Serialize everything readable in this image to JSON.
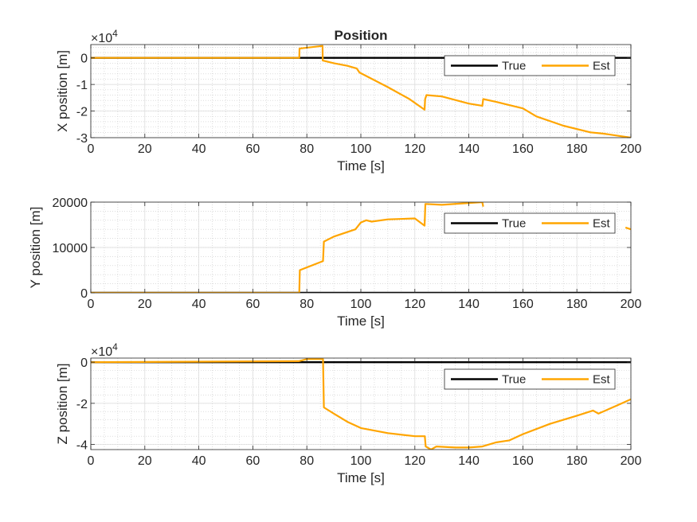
{
  "figure": {
    "title": "Position"
  },
  "legend_colors": {
    "True": "#000000",
    "Est": "#FFA500"
  },
  "chart_data": [
    {
      "type": "line",
      "title": "Position",
      "xlabel": "Time [s]",
      "ylabel": "X position [m]",
      "xlim": [
        0,
        200
      ],
      "ylim": [
        -3,
        0.5
      ],
      "y_multiplier": "×10",
      "y_multiplier_exp": "4",
      "xticks": [
        "0",
        "20",
        "40",
        "60",
        "80",
        "100",
        "120",
        "140",
        "160",
        "180",
        "200"
      ],
      "yticks": [
        {
          "value": 0,
          "label": "0"
        },
        {
          "value": -1,
          "label": "-1"
        },
        {
          "value": -2,
          "label": "-2"
        },
        {
          "value": -3,
          "label": "-3"
        }
      ],
      "grid": true,
      "legend": "top-right",
      "series": [
        {
          "name": "True",
          "color": "#000000",
          "points": [
            [
              0,
              0
            ],
            [
              200,
              0
            ]
          ]
        },
        {
          "name": "Est",
          "color": "#FFA500",
          "points": [
            [
              0,
              0
            ],
            [
              77.2,
              0
            ],
            [
              77.3,
              0.35
            ],
            [
              85.8,
              0.45
            ],
            [
              85.9,
              -0.1
            ],
            [
              90,
              -0.2
            ],
            [
              95,
              -0.3
            ],
            [
              98.5,
              -0.4
            ],
            [
              99.5,
              -0.55
            ],
            [
              110,
              -1.1
            ],
            [
              118,
              -1.55
            ],
            [
              123.6,
              -1.95
            ],
            [
              123.8,
              -1.55
            ],
            [
              124.3,
              -1.4
            ],
            [
              130,
              -1.45
            ],
            [
              140,
              -1.72
            ],
            [
              145,
              -1.8
            ],
            [
              145.3,
              -1.55
            ],
            [
              150,
              -1.65
            ],
            [
              160,
              -1.9
            ],
            [
              165,
              -2.2
            ],
            [
              175,
              -2.55
            ],
            [
              185,
              -2.8
            ],
            [
              190,
              -2.85
            ],
            [
              200,
              -3.0
            ]
          ]
        }
      ]
    },
    {
      "type": "line",
      "title": "",
      "xlabel": "Time [s]",
      "ylabel": "Y position [m]",
      "xlim": [
        0,
        200
      ],
      "ylim": [
        0,
        20000
      ],
      "xticks": [
        "0",
        "20",
        "40",
        "60",
        "80",
        "100",
        "120",
        "140",
        "160",
        "180",
        "200"
      ],
      "yticks": [
        {
          "value": 0,
          "label": "0"
        },
        {
          "value": 10000,
          "label": "10000"
        },
        {
          "value": 20000,
          "label": "20000"
        }
      ],
      "grid": true,
      "legend": "top-right",
      "series": [
        {
          "name": "True",
          "color": "#000000",
          "points": [
            [
              0,
              0
            ],
            [
              200,
              0
            ]
          ]
        },
        {
          "name": "Est",
          "color": "#FFA500",
          "points": [
            [
              0,
              0
            ],
            [
              77.2,
              0
            ],
            [
              77.4,
              5000
            ],
            [
              86,
              7000
            ],
            [
              86.3,
              11300
            ],
            [
              90,
              12400
            ],
            [
              98,
              14000
            ],
            [
              100,
              15500
            ],
            [
              102,
              16000
            ],
            [
              104,
              15700
            ],
            [
              110,
              16200
            ],
            [
              120,
              16400
            ],
            [
              123.6,
              14800
            ],
            [
              123.9,
              19600
            ],
            [
              130,
              19400
            ],
            [
              140,
              19800
            ],
            [
              145,
              20000
            ],
            [
              145.3,
              19000
            ]
          ]
        }
      ],
      "extra_segments": [
        {
          "name": "Est",
          "color": "#FFA500",
          "points": [
            [
              198,
              14400
            ],
            [
              200,
              14000
            ]
          ]
        }
      ]
    },
    {
      "type": "line",
      "title": "",
      "xlabel": "Time [s]",
      "ylabel": "Z position [m]",
      "xlim": [
        0,
        200
      ],
      "ylim": [
        -4.25,
        0.2
      ],
      "y_multiplier": "×10",
      "y_multiplier_exp": "4",
      "xticks": [
        "0",
        "20",
        "40",
        "60",
        "80",
        "100",
        "120",
        "140",
        "160",
        "180",
        "200"
      ],
      "yticks": [
        {
          "value": 0,
          "label": "0"
        },
        {
          "value": -2,
          "label": "-2"
        },
        {
          "value": -4,
          "label": "-4"
        }
      ],
      "grid": true,
      "legend": "top-right",
      "series": [
        {
          "name": "True",
          "color": "#000000",
          "points": [
            [
              0,
              0
            ],
            [
              200,
              0
            ]
          ]
        },
        {
          "name": "Est",
          "color": "#FFA500",
          "points": [
            [
              0,
              0
            ],
            [
              77,
              0.05
            ],
            [
              80,
              0.15
            ],
            [
              86,
              0.15
            ],
            [
              86.3,
              -2.2
            ],
            [
              90,
              -2.5
            ],
            [
              95,
              -2.9
            ],
            [
              100,
              -3.2
            ],
            [
              110,
              -3.45
            ],
            [
              120,
              -3.6
            ],
            [
              123.7,
              -3.6
            ],
            [
              124,
              -4.1
            ],
            [
              126,
              -4.25
            ],
            [
              128,
              -4.1
            ],
            [
              135,
              -4.15
            ],
            [
              140,
              -4.15
            ],
            [
              145,
              -4.1
            ],
            [
              150,
              -3.9
            ],
            [
              155,
              -3.8
            ],
            [
              160,
              -3.5
            ],
            [
              170,
              -3.0
            ],
            [
              180,
              -2.6
            ],
            [
              186,
              -2.35
            ],
            [
              188,
              -2.5
            ],
            [
              195,
              -2.1
            ],
            [
              200,
              -1.8
            ]
          ]
        }
      ]
    }
  ]
}
